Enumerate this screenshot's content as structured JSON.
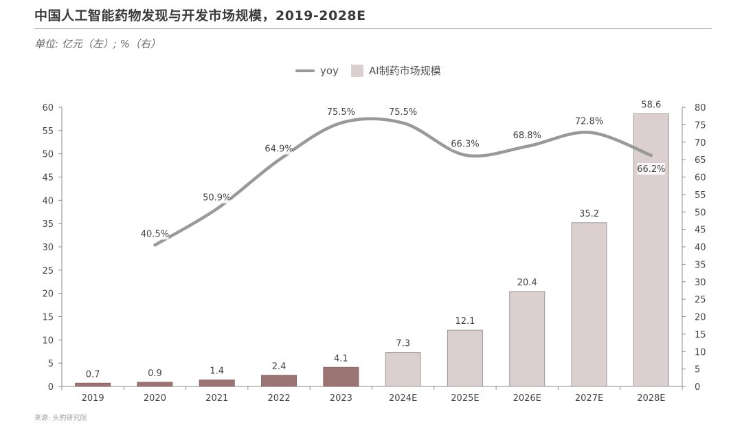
{
  "title": "中国人工智能药物发现与开发市场规模，2019-2028E",
  "unit": "单位: 亿元（左）; %（右）",
  "source": "来源: 头豹研究院",
  "legend": {
    "line": "yoy",
    "bar": "AI制药市场规模"
  },
  "colors": {
    "actual_bar": "#9b7474",
    "forecast_bar": "#dccfd0",
    "line": "#999999"
  },
  "chart_data": {
    "type": "bar",
    "categories": [
      "2019",
      "2020",
      "2021",
      "2022",
      "2023",
      "2024E",
      "2025E",
      "2026E",
      "2027E",
      "2028E"
    ],
    "series": [
      {
        "name": "AI制药市场规模",
        "axis": "left",
        "values": [
          0.7,
          0.9,
          1.4,
          2.4,
          4.1,
          7.3,
          12.1,
          20.4,
          35.2,
          58.6
        ]
      },
      {
        "name": "yoy",
        "type": "line",
        "axis": "right",
        "values": [
          null,
          40.5,
          50.9,
          64.9,
          75.5,
          75.5,
          66.3,
          68.8,
          72.8,
          66.2
        ]
      }
    ],
    "bar_labels": [
      "0.7",
      "0.9",
      "1.4",
      "2.4",
      "4.1",
      "7.3",
      "12.1",
      "20.4",
      "35.2",
      "58.6"
    ],
    "line_labels": [
      "",
      "40.5%",
      "50.9%",
      "64.9%",
      "75.5%",
      "75.5%",
      "66.3%",
      "68.8%",
      "72.8%",
      "66.2%"
    ],
    "y_left": {
      "min": 0,
      "max": 60,
      "step": 5
    },
    "y_right": {
      "min": 0,
      "max": 80,
      "step": 5
    },
    "actual_count": 5,
    "legend_position": "top-center",
    "grid": false
  }
}
